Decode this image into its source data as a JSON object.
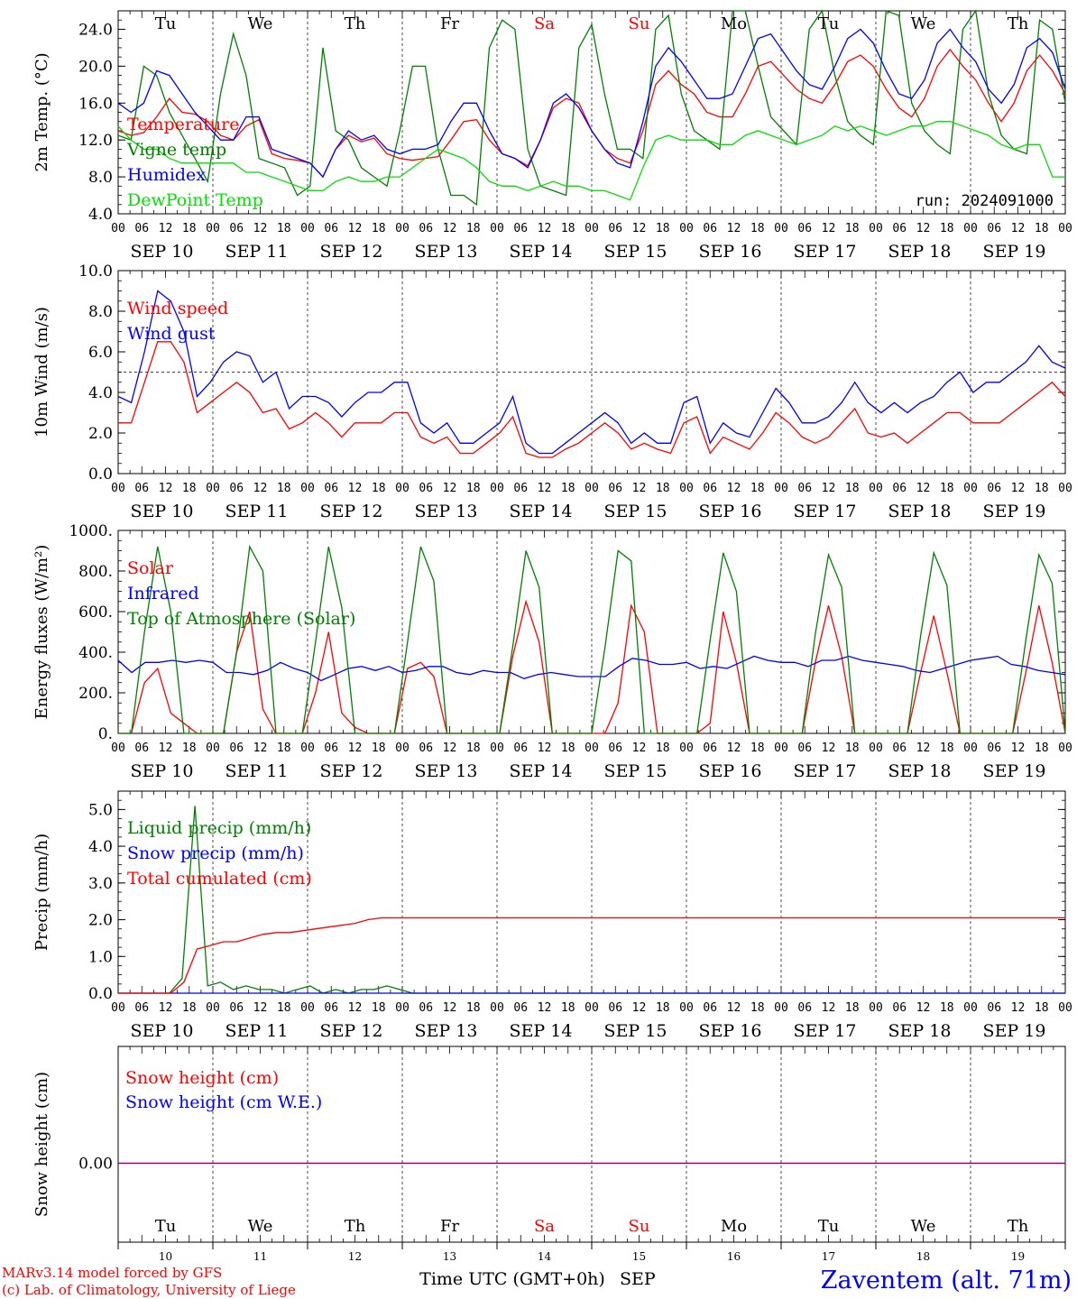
{
  "x_axis": {
    "days": [
      "SEP 10",
      "SEP 11",
      "SEP 12",
      "SEP 13",
      "SEP 14",
      "SEP 15",
      "SEP 16",
      "SEP 17",
      "SEP 18",
      "SEP 19"
    ],
    "hours": [
      "00",
      "06",
      "12",
      "18"
    ],
    "end_hour": "00",
    "weekdays": [
      "Tu",
      "We",
      "Th",
      "Fr",
      "Sa",
      "Su",
      "Mo",
      "Tu",
      "We",
      "Th"
    ],
    "weekend_indices": [
      4,
      5
    ],
    "day_numbers": [
      "10",
      "11",
      "12",
      "13",
      "14",
      "15",
      "16",
      "17",
      "18",
      "19"
    ],
    "title": "Time UTC (GMT+0h)",
    "month": "SEP"
  },
  "footer": {
    "model_line": "MARv3.14 model forced by GFS",
    "credit_line": "(c) Lab. of Climatology, University of Liege",
    "station": "Zaventem (alt. 71m)"
  },
  "colors": {
    "red": "#ff0000",
    "green": "#008000",
    "blue": "#0000ff",
    "lightgreen": "#00e000",
    "purple": "#800080"
  },
  "chart_data": [
    {
      "type": "line",
      "id": "temperature",
      "ylabel": "2m Temp. (°C)",
      "ylim": [
        4,
        26
      ],
      "yticks": [
        "4.0",
        "8.0",
        "12.0",
        "16.0",
        "20.0",
        "24.0"
      ],
      "run_label": "run: 2024091000",
      "x_unit": "hours since SEP 10 00 UTC, step 3h",
      "series": [
        {
          "name": "Temperature",
          "color": "red",
          "values": [
            13.0,
            12.5,
            12.8,
            14.5,
            16.5,
            15.0,
            14.8,
            14.0,
            12.5,
            12.0,
            13.5,
            14.2,
            10.5,
            10.0,
            9.8,
            9.5,
            8.0,
            11.0,
            12.5,
            11.8,
            12.2,
            10.5,
            10.0,
            9.8,
            10.0,
            10.2,
            12.0,
            14.0,
            14.2,
            12.0,
            10.5,
            10.0,
            9.2,
            12.0,
            15.5,
            16.5,
            16.0,
            13.0,
            11.0,
            10.0,
            9.5,
            13.0,
            18.0,
            19.5,
            18.0,
            17.0,
            15.0,
            14.5,
            14.5,
            17.0,
            20.0,
            20.5,
            19.0,
            17.5,
            16.5,
            16.0,
            18.0,
            20.5,
            21.2,
            20.0,
            17.5,
            15.5,
            14.5,
            16.5,
            20.0,
            21.8,
            20.0,
            18.5,
            16.0,
            14.0,
            16.0,
            19.5,
            21.2,
            19.5,
            17.0
          ]
        },
        {
          "name": "Vigne temp",
          "color": "green",
          "values": [
            12.5,
            12.0,
            20.0,
            19.0,
            15.0,
            12.5,
            10.0,
            7.5,
            17.0,
            23.5,
            19.0,
            10.0,
            9.5,
            9.0,
            6.0,
            7.0,
            22.0,
            13.0,
            12.0,
            9.0,
            8.0,
            7.0,
            13.0,
            20.0,
            20.0,
            11.0,
            6.0,
            6.0,
            5.0,
            22.0,
            25.0,
            24.0,
            11.0,
            7.0,
            6.5,
            6.0,
            22.0,
            24.5,
            17.0,
            11.0,
            11.0,
            10.0,
            24.0,
            25.5,
            17.0,
            13.0,
            12.0,
            11.0,
            26.0,
            26.5,
            20.0,
            14.5,
            13.0,
            11.5,
            24.0,
            26.5,
            19.0,
            14.0,
            12.5,
            11.5,
            26.0,
            25.5,
            16.0,
            13.0,
            11.5,
            10.5,
            24.0,
            26.0,
            17.0,
            12.5,
            11.0,
            10.5,
            25.0,
            24.0,
            16.0
          ]
        },
        {
          "name": "Humidex",
          "color": "blue",
          "values": [
            16.0,
            15.0,
            16.0,
            19.5,
            19.0,
            17.0,
            15.0,
            13.5,
            12.0,
            12.0,
            14.5,
            14.5,
            11.0,
            10.5,
            10.0,
            9.5,
            8.0,
            11.0,
            13.0,
            12.0,
            12.5,
            11.0,
            10.5,
            11.0,
            11.0,
            11.5,
            14.0,
            16.0,
            16.0,
            13.0,
            10.5,
            10.0,
            9.0,
            12.0,
            16.0,
            17.0,
            15.5,
            13.0,
            11.0,
            9.5,
            9.0,
            14.0,
            20.0,
            22.0,
            20.5,
            18.5,
            16.5,
            16.5,
            17.0,
            20.0,
            23.0,
            23.5,
            21.5,
            19.5,
            18.0,
            17.5,
            20.0,
            23.0,
            24.0,
            22.5,
            19.5,
            17.0,
            16.5,
            18.5,
            22.5,
            24.0,
            22.0,
            20.5,
            17.5,
            16.0,
            18.0,
            22.0,
            23.0,
            21.5,
            17.5
          ]
        },
        {
          "name": "DewPoint Temp",
          "color": "lightgreen",
          "values": [
            13.5,
            12.0,
            11.0,
            11.0,
            10.0,
            9.5,
            9.5,
            9.5,
            9.5,
            9.5,
            8.5,
            8.5,
            8.0,
            7.5,
            7.0,
            6.5,
            6.5,
            7.5,
            8.0,
            7.5,
            7.5,
            8.0,
            8.0,
            9.0,
            10.0,
            11.0,
            10.5,
            10.0,
            9.0,
            7.5,
            7.0,
            7.0,
            6.5,
            7.0,
            7.5,
            7.0,
            7.0,
            6.5,
            6.5,
            6.0,
            5.5,
            9.0,
            12.0,
            12.5,
            12.0,
            12.0,
            12.0,
            11.5,
            11.5,
            12.5,
            13.0,
            12.5,
            12.0,
            11.5,
            12.0,
            12.5,
            13.5,
            13.0,
            13.5,
            13.0,
            12.5,
            13.0,
            13.5,
            13.5,
            14.0,
            14.0,
            13.5,
            13.0,
            12.5,
            11.5,
            11.0,
            11.5,
            11.5,
            8.0,
            8.0
          ]
        }
      ]
    },
    {
      "type": "line",
      "id": "wind",
      "ylabel": "10m Wind (m/s)",
      "ylim": [
        0,
        10
      ],
      "yticks": [
        "0.0",
        "2.0",
        "4.0",
        "6.0",
        "8.0",
        "10.0"
      ],
      "reference_line": 5.0,
      "series": [
        {
          "name": "Wind speed",
          "color": "red",
          "values": [
            2.5,
            2.5,
            4.5,
            6.5,
            6.5,
            5.5,
            3.0,
            3.5,
            4.0,
            4.5,
            4.0,
            3.0,
            3.2,
            2.2,
            2.5,
            3.0,
            2.5,
            1.8,
            2.5,
            2.5,
            2.5,
            3.0,
            3.0,
            1.8,
            1.5,
            1.8,
            1.0,
            1.0,
            1.5,
            2.0,
            2.8,
            1.0,
            0.8,
            0.8,
            1.2,
            1.5,
            2.0,
            2.5,
            2.0,
            1.2,
            1.5,
            1.2,
            1.0,
            2.5,
            2.8,
            1.0,
            1.8,
            1.5,
            1.2,
            2.0,
            3.0,
            2.5,
            1.8,
            1.5,
            1.8,
            2.5,
            3.2,
            2.0,
            1.8,
            2.0,
            1.5,
            2.0,
            2.5,
            3.0,
            3.0,
            2.5,
            2.5,
            2.5,
            3.0,
            3.5,
            4.0,
            4.5,
            3.8
          ]
        },
        {
          "name": "Wind gust",
          "color": "blue",
          "values": [
            3.8,
            3.5,
            6.0,
            9.0,
            8.5,
            7.0,
            3.8,
            4.5,
            5.5,
            6.0,
            5.8,
            4.5,
            5.0,
            3.2,
            3.8,
            3.8,
            3.5,
            2.8,
            3.5,
            4.0,
            4.0,
            4.5,
            4.5,
            2.5,
            2.0,
            2.5,
            1.5,
            1.5,
            2.0,
            2.5,
            3.8,
            1.5,
            1.0,
            1.0,
            1.5,
            2.0,
            2.5,
            3.0,
            2.5,
            1.5,
            2.0,
            1.5,
            1.5,
            3.5,
            3.8,
            1.5,
            2.5,
            2.0,
            1.8,
            3.0,
            4.2,
            3.5,
            2.5,
            2.5,
            2.8,
            3.5,
            4.5,
            3.5,
            3.0,
            3.5,
            3.0,
            3.5,
            3.8,
            4.5,
            5.0,
            4.0,
            4.5,
            4.5,
            5.0,
            5.5,
            6.3,
            5.5,
            5.2
          ]
        }
      ]
    },
    {
      "type": "line",
      "id": "energy",
      "ylabel": "Energy fluxes (W/m²)",
      "ylim": [
        0,
        1000
      ],
      "yticks": [
        "0.",
        "200.",
        "400.",
        "600.",
        "800.",
        "1000."
      ],
      "series": [
        {
          "name": "Solar",
          "color": "red",
          "values": [
            0,
            0,
            250,
            320,
            100,
            50,
            0,
            0,
            0,
            400,
            600,
            120,
            0,
            0,
            0,
            200,
            500,
            100,
            30,
            0,
            0,
            0,
            320,
            350,
            280,
            0,
            0,
            0,
            0,
            0,
            380,
            650,
            450,
            0,
            0,
            0,
            0,
            0,
            150,
            630,
            500,
            0,
            0,
            0,
            0,
            50,
            600,
            350,
            0,
            0,
            0,
            0,
            0,
            350,
            630,
            380,
            0,
            0,
            0,
            0,
            0,
            300,
            580,
            300,
            0,
            0,
            0,
            0,
            0,
            300,
            630,
            350,
            0
          ]
        },
        {
          "name": "Infrared",
          "color": "blue",
          "values": [
            360,
            300,
            350,
            350,
            360,
            350,
            360,
            350,
            300,
            300,
            290,
            310,
            350,
            320,
            300,
            260,
            290,
            320,
            330,
            310,
            330,
            300,
            310,
            330,
            330,
            300,
            290,
            310,
            300,
            300,
            270,
            290,
            300,
            290,
            280,
            280,
            280,
            330,
            370,
            360,
            340,
            340,
            350,
            320,
            330,
            320,
            350,
            380,
            360,
            350,
            350,
            330,
            360,
            360,
            380,
            360,
            350,
            340,
            330,
            310,
            300,
            320,
            340,
            360,
            370,
            380,
            340,
            330,
            310,
            300,
            290
          ]
        },
        {
          "name": "Top of Atmosphere (Solar)",
          "color": "green",
          "values": [
            0,
            0,
            500,
            920,
            600,
            0,
            0,
            0,
            0,
            400,
            920,
            800,
            0,
            0,
            0,
            450,
            920,
            620,
            0,
            0,
            0,
            0,
            450,
            920,
            750,
            0,
            0,
            0,
            0,
            0,
            430,
            900,
            720,
            0,
            0,
            0,
            0,
            420,
            900,
            850,
            0,
            0,
            0,
            0,
            0,
            460,
            890,
            700,
            0,
            0,
            0,
            0,
            0,
            490,
            880,
            720,
            0,
            0,
            0,
            0,
            0,
            480,
            890,
            730,
            0,
            0,
            0,
            0,
            0,
            460,
            880,
            740,
            0
          ]
        }
      ]
    },
    {
      "type": "line",
      "id": "precip",
      "ylabel": "Precip (mm/h)",
      "ylim": [
        0,
        5.5
      ],
      "yticks": [
        "0.0",
        "1.0",
        "2.0",
        "3.0",
        "4.0",
        "5.0"
      ],
      "series": [
        {
          "name": "Liquid precip (mm/h)",
          "color": "green",
          "values": [
            0,
            0,
            0,
            0,
            0,
            0.4,
            5.1,
            0.2,
            0.3,
            0.1,
            0.2,
            0.1,
            0.1,
            0,
            0.1,
            0.2,
            0,
            0.1,
            0,
            0.1,
            0.1,
            0.2,
            0.1,
            0,
            0,
            0,
            0,
            0,
            0,
            0,
            0,
            0,
            0,
            0,
            0,
            0,
            0,
            0,
            0,
            0,
            0,
            0,
            0,
            0,
            0,
            0,
            0,
            0,
            0,
            0,
            0,
            0,
            0,
            0,
            0,
            0,
            0,
            0,
            0,
            0,
            0,
            0,
            0,
            0,
            0,
            0,
            0,
            0,
            0,
            0,
            0,
            0,
            0,
            0,
            0
          ]
        },
        {
          "name": "Snow precip (mm/h)",
          "color": "blue",
          "values": [
            0,
            0,
            0,
            0,
            0,
            0,
            0,
            0,
            0,
            0,
            0,
            0,
            0,
            0,
            0,
            0,
            0,
            0,
            0,
            0,
            0,
            0,
            0,
            0,
            0,
            0,
            0,
            0,
            0,
            0,
            0,
            0,
            0,
            0,
            0,
            0,
            0,
            0,
            0,
            0,
            0,
            0,
            0,
            0,
            0,
            0,
            0,
            0,
            0,
            0,
            0,
            0,
            0,
            0,
            0,
            0,
            0,
            0,
            0,
            0,
            0,
            0,
            0,
            0,
            0,
            0,
            0,
            0,
            0,
            0,
            0,
            0,
            0,
            0,
            0,
            0,
            0,
            0,
            0,
            0,
            0
          ]
        },
        {
          "name": "Total cumulated (cm)",
          "color": "red",
          "values": [
            0,
            0,
            0,
            0,
            0,
            0.3,
            1.2,
            1.3,
            1.4,
            1.4,
            1.5,
            1.6,
            1.65,
            1.65,
            1.7,
            1.75,
            1.8,
            1.85,
            1.9,
            2.0,
            2.05,
            2.05,
            2.05,
            2.05,
            2.05,
            2.05,
            2.05,
            2.05,
            2.05,
            2.05,
            2.05,
            2.05,
            2.05,
            2.05,
            2.05,
            2.05,
            2.05,
            2.05,
            2.05,
            2.05,
            2.05,
            2.05,
            2.05,
            2.05,
            2.05,
            2.05,
            2.05,
            2.05,
            2.05,
            2.05,
            2.05,
            2.05,
            2.05,
            2.05,
            2.05,
            2.05,
            2.05,
            2.05,
            2.05,
            2.05,
            2.05,
            2.05,
            2.05,
            2.05,
            2.05,
            2.05,
            2.05,
            2.05,
            2.05,
            2.05,
            2.05,
            2.05,
            2.05
          ]
        }
      ]
    },
    {
      "type": "line",
      "id": "snow",
      "ylabel": "Snow height (cm)",
      "yticks": [
        "0.00"
      ],
      "series": [
        {
          "name": "Snow height (cm)",
          "color": "red",
          "values": [
            0,
            0
          ]
        },
        {
          "name": "Snow height (cm W.E.)",
          "color": "blue",
          "values": [
            0,
            0
          ]
        }
      ]
    }
  ]
}
